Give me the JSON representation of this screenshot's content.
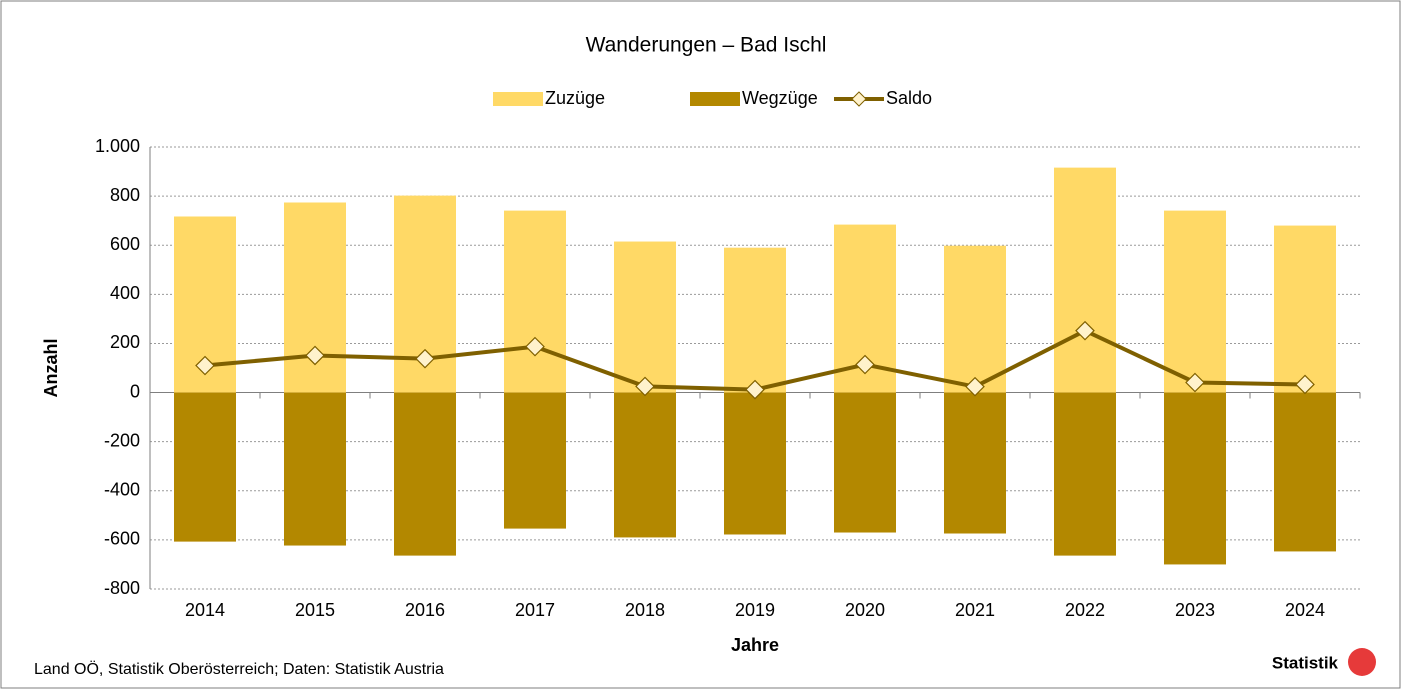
{
  "chart_data": {
    "type": "bar_line",
    "title": "Wanderungen – Bad Ischl",
    "categories": [
      "2014",
      "2015",
      "2016",
      "2017",
      "2018",
      "2019",
      "2020",
      "2021",
      "2022",
      "2023",
      "2024"
    ],
    "series": [
      {
        "name": "Zuzüge",
        "color": "#ffd966",
        "type": "bar",
        "values": [
          717,
          774,
          802,
          741,
          615,
          590,
          684,
          598,
          916,
          741,
          680
        ]
      },
      {
        "name": "Wegzüge",
        "color": "#b38800",
        "type": "bar",
        "values": [
          -607,
          -623,
          -664,
          -554,
          -590,
          -578,
          -570,
          -574,
          -664,
          -700,
          -647
        ]
      },
      {
        "name": "Saldo",
        "color": "#7f6000",
        "type": "line",
        "marker_color": "#fff2cc",
        "values": [
          110,
          151,
          138,
          187,
          25,
          12,
          114,
          24,
          252,
          41,
          33
        ]
      }
    ],
    "ylabel": "Anzahl",
    "xlabel": "Jahre",
    "ylim": [
      -800,
      1000
    ],
    "yticks": [
      {
        "value": 1000,
        "label": "1.000"
      },
      800,
      600,
      400,
      200,
      0,
      -200,
      -400,
      -600,
      -800
    ],
    "grid": true,
    "legend": "top",
    "source": "Land OÖ, Statistik Oberösterreich; Daten: Statistik Austria",
    "logo": "Statistik"
  }
}
